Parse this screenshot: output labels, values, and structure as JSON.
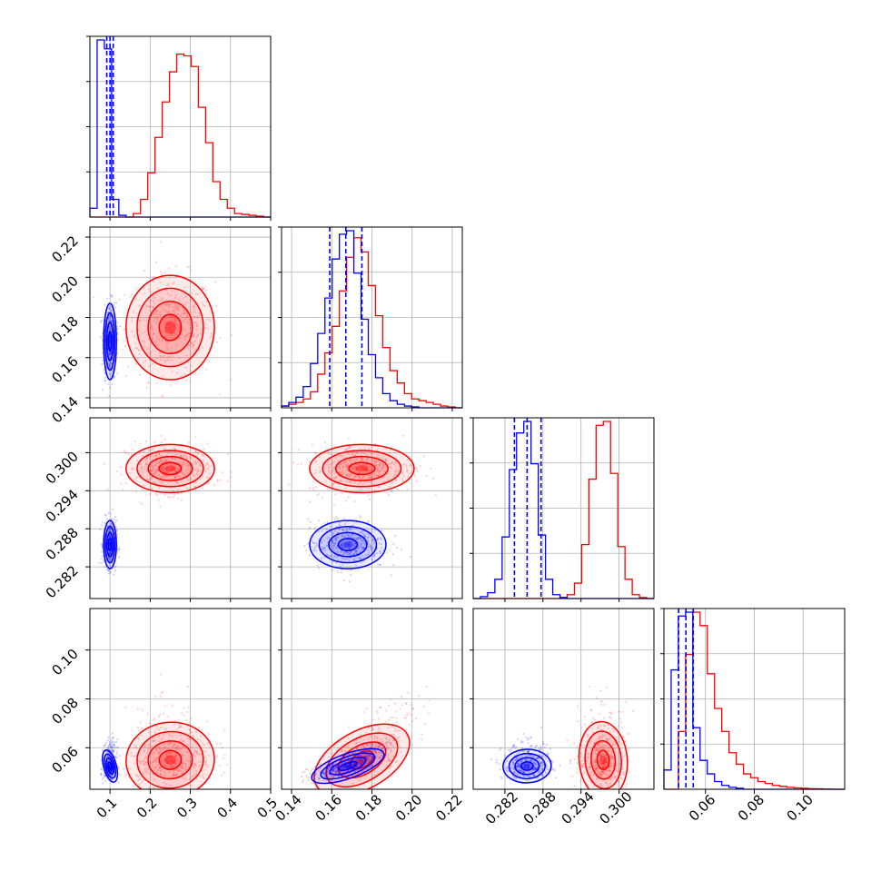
{
  "colors": {
    "red": "#ff0000",
    "blue": "#0000ff",
    "grid": "#b0b0b0",
    "axis": "#000000"
  },
  "chart_data": {
    "type": "corner",
    "grid": true,
    "parameters": [
      {
        "range": [
          0.05,
          0.5
        ],
        "ticks": [
          0.1,
          0.2,
          0.3,
          0.4,
          0.5
        ],
        "tick_labels": [
          "0.1",
          "0.2",
          "0.3",
          "0.4",
          "0.5"
        ]
      },
      {
        "range": [
          0.135,
          0.225
        ],
        "ticks": [
          0.14,
          0.16,
          0.18,
          0.2,
          0.22
        ],
        "tick_labels": [
          "0.14",
          "0.16",
          "0.18",
          "0.20",
          "0.22"
        ]
      },
      {
        "range": [
          0.277,
          0.3055
        ],
        "ticks": [
          0.282,
          0.288,
          0.294,
          0.3
        ],
        "tick_labels": [
          "0.282",
          "0.288",
          "0.294",
          "0.300"
        ]
      },
      {
        "range": [
          0.043,
          0.117
        ],
        "ticks": [
          0.06,
          0.08,
          0.1
        ],
        "tick_labels": [
          "0.06",
          "0.08",
          "0.10"
        ]
      }
    ],
    "series": [
      {
        "color": "red",
        "center": [
          0.25,
          0.175,
          0.2975,
          0.055
        ],
        "sigma": [
          0.055,
          0.013,
          0.0019,
          0.008
        ],
        "quantiles": [],
        "hist": [
          {
            "bin_start": 0.05,
            "bin_end": 0.5,
            "counts": [
              0,
              0,
              0,
              0,
              0,
              0,
              0.02,
              0.1,
              0.25,
              0.45,
              0.65,
              0.82,
              0.92,
              0.91,
              0.85,
              0.62,
              0.42,
              0.2,
              0.1,
              0.05,
              0.02,
              0.015,
              0.01,
              0.005,
              0
            ]
          },
          {
            "bin_start": 0.135,
            "bin_end": 0.225,
            "counts": [
              0.01,
              0.02,
              0.03,
              0.05,
              0.09,
              0.19,
              0.31,
              0.46,
              0.66,
              0.85,
              0.96,
              0.88,
              0.69,
              0.52,
              0.34,
              0.21,
              0.14,
              0.08,
              0.05,
              0.04,
              0.03,
              0.02,
              0.01,
              0.005,
              0
            ]
          },
          {
            "bin_start": 0.277,
            "bin_end": 0.3055,
            "counts": [
              0,
              0,
              0,
              0,
              0,
              0,
              0,
              0,
              0,
              0,
              0,
              0,
              0.005,
              0.02,
              0.08,
              0.28,
              0.62,
              0.9,
              0.92,
              0.65,
              0.27,
              0.1,
              0.02,
              0.005,
              0
            ]
          },
          {
            "bin_start": 0.043,
            "bin_end": 0.117,
            "counts": [
              0,
              0,
              0.3,
              0.7,
              0.92,
              0.85,
              0.6,
              0.42,
              0.3,
              0.19,
              0.13,
              0.08,
              0.06,
              0.04,
              0.03,
              0.02,
              0.015,
              0.01,
              0.007,
              0.005,
              0.003,
              0.002,
              0.001,
              0,
              0
            ]
          }
        ]
      },
      {
        "color": "blue",
        "center": [
          0.1,
          0.168,
          0.2855,
          0.0525
        ],
        "sigma": [
          0.008,
          0.0095,
          0.0019,
          0.0035
        ],
        "quantiles": [
          [
            0.092,
            0.1,
            0.108
          ],
          [
            0.159,
            0.167,
            0.175
          ],
          [
            0.2835,
            0.2855,
            0.2877
          ],
          [
            0.049,
            0.052,
            0.055
          ]
        ],
        "hist": [
          {
            "bin_start": 0.05,
            "bin_end": 0.5,
            "counts": [
              0.05,
              1.0,
              0.95,
              0.1,
              0.01,
              0,
              0,
              0,
              0,
              0,
              0,
              0,
              0,
              0,
              0,
              0,
              0,
              0,
              0,
              0,
              0,
              0,
              0,
              0,
              0
            ]
          },
          {
            "bin_start": 0.135,
            "bin_end": 0.225,
            "counts": [
              0.01,
              0.03,
              0.06,
              0.12,
              0.25,
              0.42,
              0.62,
              0.84,
              0.98,
              1.0,
              0.76,
              0.5,
              0.3,
              0.17,
              0.08,
              0.04,
              0.02,
              0.01,
              0.005,
              0,
              0,
              0,
              0,
              0,
              0
            ]
          },
          {
            "bin_start": 0.277,
            "bin_end": 0.3055,
            "counts": [
              0,
              0.01,
              0.03,
              0.1,
              0.32,
              0.67,
              0.86,
              0.92,
              0.7,
              0.33,
              0.1,
              0.02,
              0.005,
              0,
              0,
              0,
              0,
              0,
              0,
              0,
              0,
              0,
              0,
              0,
              0
            ]
          },
          {
            "bin_start": 0.043,
            "bin_end": 0.117,
            "counts": [
              0.1,
              0.62,
              0.9,
              0.92,
              0.32,
              0.15,
              0.08,
              0.04,
              0.02,
              0.01,
              0.005,
              0,
              0,
              0,
              0,
              0,
              0,
              0,
              0,
              0,
              0,
              0,
              0,
              0,
              0
            ]
          }
        ]
      }
    ],
    "covariances": {
      "red": {
        "1-0": [
          [
            0.003025,
            0.0
          ],
          [
            0.0,
            0.000169
          ]
        ],
        "3-1": 0.75,
        "3-2": 0.05,
        "2-1": 0.0,
        "2-0": 0.0,
        "3-0": 0.1
      },
      "blue": {
        "1-0": [
          [
            6.4e-05,
            1e-05
          ],
          [
            0.0,
            9e-05
          ]
        ],
        "3-1": 0.8,
        "3-2": 0.05,
        "2-1": 0.0,
        "2-0": 0.0,
        "3-0": 0.1
      }
    }
  }
}
